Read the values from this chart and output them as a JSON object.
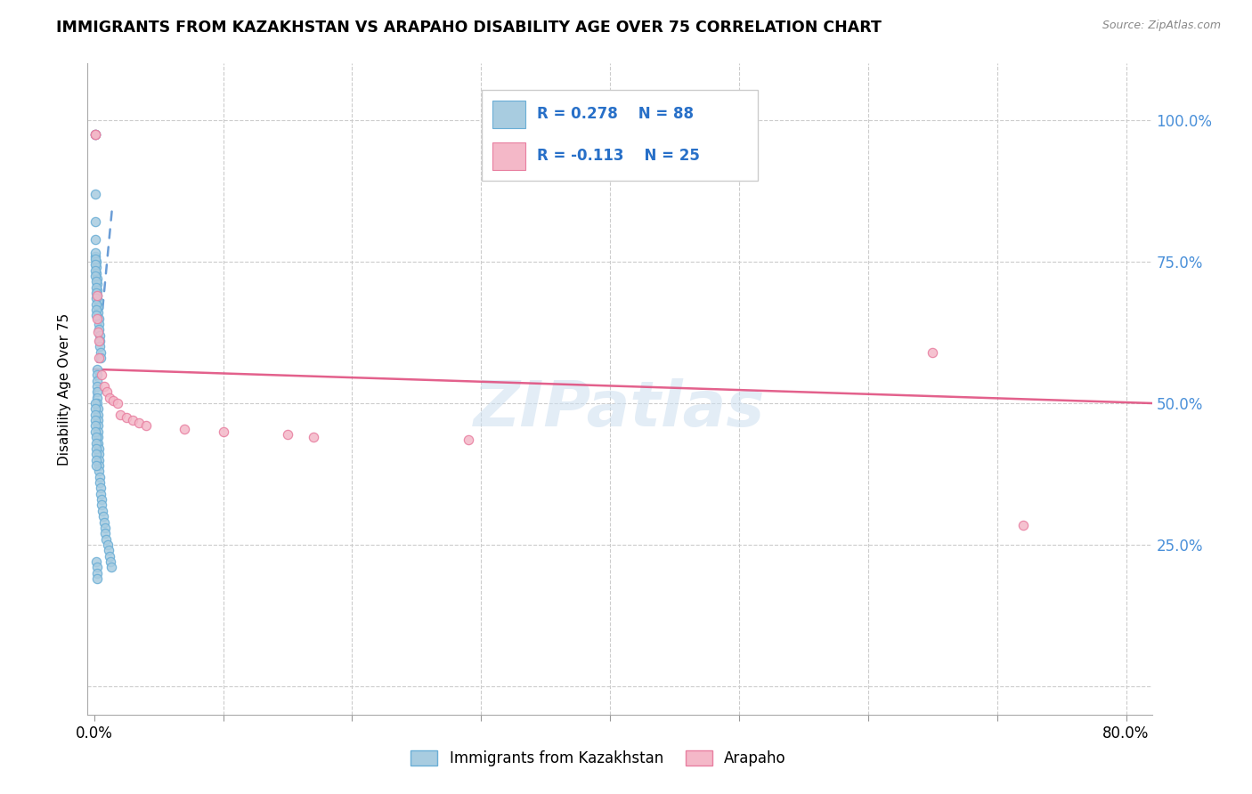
{
  "title": "IMMIGRANTS FROM KAZAKHSTAN VS ARAPAHO DISABILITY AGE OVER 75 CORRELATION CHART",
  "source": "Source: ZipAtlas.com",
  "ylabel": "Disability Age Over 75",
  "y_ticks": [
    0.0,
    0.25,
    0.5,
    0.75,
    1.0
  ],
  "y_tick_labels": [
    "",
    "25.0%",
    "50.0%",
    "75.0%",
    "100.0%"
  ],
  "x_ticks": [
    0.0,
    0.1,
    0.2,
    0.3,
    0.4,
    0.5,
    0.6,
    0.7,
    0.8
  ],
  "x_tick_labels": [
    "0.0%",
    "",
    "",
    "",
    "",
    "",
    "",
    "",
    "80.0%"
  ],
  "xlim": [
    -0.005,
    0.82
  ],
  "ylim": [
    -0.05,
    1.1
  ],
  "blue_color": "#a8cce0",
  "blue_edge": "#6aaed6",
  "pink_color": "#f4b8c8",
  "pink_edge": "#e87fa0",
  "blue_trendline_color": "#3a7dc9",
  "pink_trendline_color": "#e05080",
  "watermark": "ZIPatlas",
  "blue_dots_x": [
    0.0008,
    0.0008,
    0.001,
    0.001,
    0.0012,
    0.0012,
    0.0014,
    0.0016,
    0.0018,
    0.002,
    0.0022,
    0.0024,
    0.0026,
    0.0028,
    0.003,
    0.0032,
    0.0034,
    0.0036,
    0.004,
    0.0042,
    0.0044,
    0.0046,
    0.0048,
    0.005,
    0.0008,
    0.0009,
    0.001,
    0.0011,
    0.0012,
    0.0013,
    0.0014,
    0.0015,
    0.0016,
    0.0017,
    0.0018,
    0.0019,
    0.002,
    0.0021,
    0.0022,
    0.0023,
    0.0024,
    0.0025,
    0.0026,
    0.0027,
    0.0028,
    0.0029,
    0.003,
    0.0031,
    0.0032,
    0.0033,
    0.0034,
    0.0035,
    0.0036,
    0.0038,
    0.004,
    0.0042,
    0.0044,
    0.0048,
    0.0052,
    0.0056,
    0.006,
    0.0065,
    0.007,
    0.0076,
    0.0082,
    0.0088,
    0.0095,
    0.0103,
    0.011,
    0.0118,
    0.0127,
    0.0136,
    0.0007,
    0.0008,
    0.0009,
    0.001,
    0.0011,
    0.0012,
    0.0013,
    0.0014,
    0.0015,
    0.0016,
    0.0017,
    0.0018,
    0.0019,
    0.002,
    0.0021,
    0.0022
  ],
  "blue_dots_y": [
    0.975,
    0.975,
    0.87,
    0.82,
    0.79,
    0.76,
    0.75,
    0.74,
    0.73,
    0.72,
    0.71,
    0.7,
    0.69,
    0.68,
    0.67,
    0.66,
    0.65,
    0.64,
    0.63,
    0.62,
    0.61,
    0.6,
    0.59,
    0.58,
    0.765,
    0.755,
    0.745,
    0.735,
    0.725,
    0.715,
    0.705,
    0.695,
    0.685,
    0.675,
    0.665,
    0.655,
    0.56,
    0.55,
    0.54,
    0.53,
    0.52,
    0.51,
    0.5,
    0.49,
    0.48,
    0.47,
    0.46,
    0.45,
    0.44,
    0.43,
    0.42,
    0.41,
    0.4,
    0.39,
    0.38,
    0.37,
    0.36,
    0.35,
    0.34,
    0.33,
    0.32,
    0.31,
    0.3,
    0.29,
    0.28,
    0.27,
    0.26,
    0.25,
    0.24,
    0.23,
    0.22,
    0.21,
    0.5,
    0.49,
    0.48,
    0.47,
    0.46,
    0.45,
    0.44,
    0.43,
    0.42,
    0.41,
    0.4,
    0.39,
    0.22,
    0.21,
    0.2,
    0.19
  ],
  "pink_dots_x": [
    0.0008,
    0.0008,
    0.002,
    0.0025,
    0.003,
    0.0035,
    0.004,
    0.006,
    0.008,
    0.01,
    0.012,
    0.015,
    0.018,
    0.02,
    0.025,
    0.03,
    0.035,
    0.04,
    0.07,
    0.1,
    0.15,
    0.17,
    0.29,
    0.65,
    0.72
  ],
  "pink_dots_y": [
    0.975,
    0.975,
    0.69,
    0.65,
    0.625,
    0.61,
    0.58,
    0.55,
    0.53,
    0.52,
    0.51,
    0.505,
    0.5,
    0.48,
    0.475,
    0.47,
    0.465,
    0.46,
    0.455,
    0.45,
    0.445,
    0.44,
    0.435,
    0.59,
    0.285
  ],
  "blue_trend_x": [
    0.0,
    0.014
  ],
  "blue_trend_y": [
    0.51,
    0.845
  ],
  "pink_trend_x": [
    0.0,
    0.82
  ],
  "pink_trend_y": [
    0.56,
    0.5
  ]
}
